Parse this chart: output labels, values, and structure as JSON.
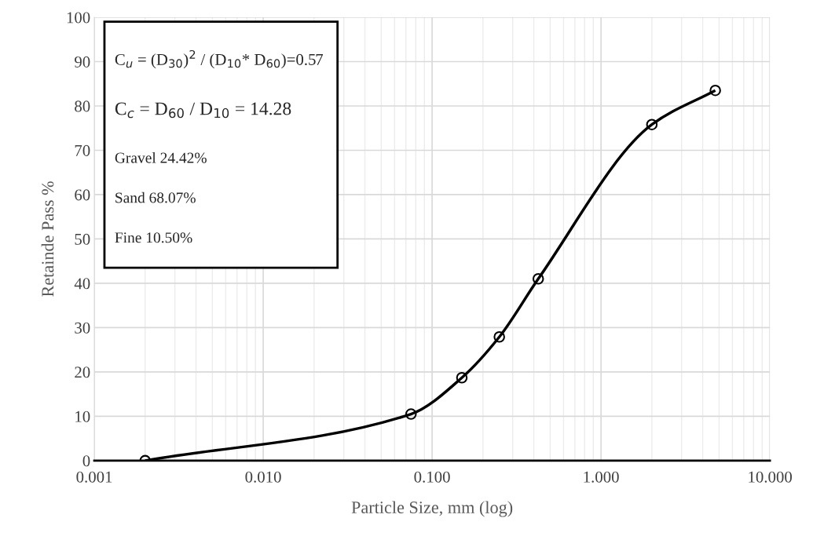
{
  "chart_data": {
    "type": "line",
    "xlabel": "Particle Size, mm (log)",
    "ylabel": "Retainde Pass %",
    "log": "x",
    "grid": true,
    "marker": "circle",
    "line_style": "solid",
    "xlim": [
      0.001,
      10
    ],
    "ylim": [
      0,
      100
    ],
    "xticks": [
      {
        "value": 0.001,
        "label": "0.001"
      },
      {
        "value": 0.01,
        "label": "0.010"
      },
      {
        "value": 0.1,
        "label": "0.100"
      },
      {
        "value": 1,
        "label": "1.000"
      },
      {
        "value": 10,
        "label": "10.000"
      }
    ],
    "yticks": [
      0,
      10,
      20,
      30,
      40,
      50,
      60,
      70,
      80,
      90,
      100
    ],
    "x": [
      0.002,
      0.075,
      0.15,
      0.25,
      0.425,
      2.0,
      4.75
    ],
    "series": [
      {
        "color": "#000000",
        "values": [
          0,
          10.5,
          18.7,
          27.9,
          41,
          75.8,
          83.5
        ]
      }
    ],
    "annotations": [
      "C$_{u}$ = (D$_{30}$)$^{2}$ / (D$_{10}$* D$_{60}$)=0.57",
      "C$_{c}$ = D$_{60}$ / D$_{10}$ = 14.28",
      "Gravel 24.42%",
      "Sand 68.07%",
      "Fine 10.50%"
    ]
  }
}
